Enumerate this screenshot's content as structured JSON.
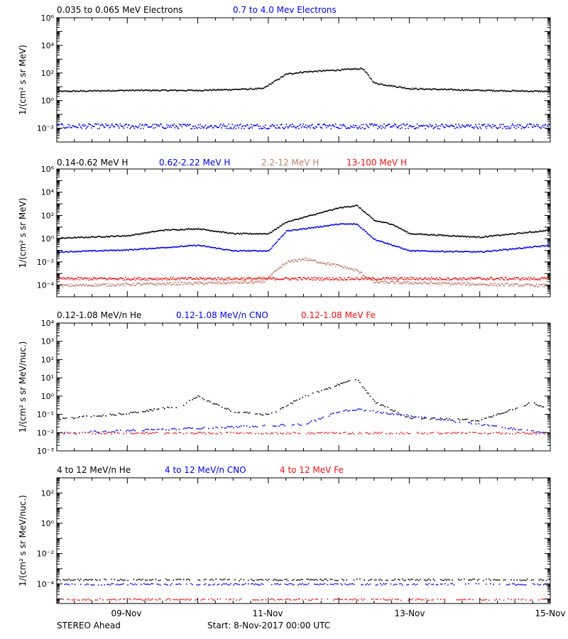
{
  "colors": {
    "black": "#000000",
    "blue": "#0000ee",
    "tan": "#c08070",
    "red": "#ee1111"
  },
  "x_ticks": [
    "09-Nov",
    "11-Nov",
    "13-Nov",
    "15-Nov"
  ],
  "footer": {
    "left": "STEREO Ahead",
    "start": "Start:  8-Nov-2017 00:00 UTC"
  },
  "chart_data": [
    {
      "type": "scatter",
      "title_parts": [
        "0.035 to 0.065 MeV Electrons",
        "0.7 to 4.0 Mev Electrons"
      ],
      "ylabel": "1/(cm² s sr MeV)",
      "yscale": "log",
      "ylim": [
        0.001,
        1000000
      ],
      "yticks": [
        "10⁶",
        "10⁴",
        "10²",
        "10⁰",
        "10⁻²"
      ],
      "xlim": [
        "2017-11-08",
        "2017-11-15"
      ],
      "series": [
        {
          "name": "0.035 to 0.065 MeV Electrons",
          "color": "black",
          "x": [
            "2017-11-08",
            "2017-11-09",
            "2017-11-10",
            "2017-11-10 12:00",
            "2017-11-10 22:00",
            "2017-11-11 06:00",
            "2017-11-11 12:00",
            "2017-11-12 00:00",
            "2017-11-12 08:00",
            "2017-11-12 12:00",
            "2017-11-13",
            "2017-11-14",
            "2017-11-15"
          ],
          "y": [
            5,
            6,
            6,
            7,
            8,
            90,
            130,
            180,
            230,
            20,
            8,
            6,
            5
          ]
        },
        {
          "name": "0.7 to 4.0 Mev Electrons",
          "color": "blue",
          "x": [
            "2017-11-08",
            "2017-11-10",
            "2017-11-12",
            "2017-11-15"
          ],
          "y": [
            0.015,
            0.015,
            0.015,
            0.015
          ]
        }
      ]
    },
    {
      "type": "scatter",
      "title_parts": [
        "0.14-0.62 MeV H",
        "0.62-2.22 MeV H",
        "2.2-12 MeV H",
        "13-100 MeV H"
      ],
      "ylabel": "1/(cm² s sr MeV)",
      "yscale": "log",
      "ylim": [
        1e-05,
        1000000
      ],
      "yticks": [
        "10⁶",
        "10⁴",
        "10²",
        "10⁰",
        "10⁻²",
        "10⁻⁴"
      ],
      "xlim": [
        "2017-11-08",
        "2017-11-15"
      ],
      "series": [
        {
          "name": "0.14-0.62 MeV H",
          "color": "black",
          "x": [
            "2017-11-08",
            "2017-11-09",
            "2017-11-09 12:00",
            "2017-11-10",
            "2017-11-10 12:00",
            "2017-11-11",
            "2017-11-11 06:00",
            "2017-11-12",
            "2017-11-12 06:00",
            "2017-11-12 12:00",
            "2017-11-12 18:00",
            "2017-11-13",
            "2017-11-14",
            "2017-11-15"
          ],
          "y": [
            1.2,
            2,
            6,
            8,
            3,
            3,
            30,
            500,
            800,
            40,
            20,
            3,
            1.5,
            6
          ]
        },
        {
          "name": "0.62-2.22 MeV H",
          "color": "blue",
          "x": [
            "2017-11-08",
            "2017-11-09",
            "2017-11-10",
            "2017-11-10 12:00",
            "2017-11-11",
            "2017-11-11 06:00",
            "2017-11-12",
            "2017-11-12 06:00",
            "2017-11-12 12:00",
            "2017-11-13",
            "2017-11-14",
            "2017-11-15"
          ],
          "y": [
            0.08,
            0.12,
            0.3,
            0.1,
            0.1,
            5,
            20,
            20,
            1,
            0.1,
            0.08,
            0.3
          ]
        },
        {
          "name": "2.2-12 MeV H",
          "color": "tan",
          "x": [
            "2017-11-08",
            "2017-11-10 22:00",
            "2017-11-11 06:00",
            "2017-11-11 12:00",
            "2017-11-12 00:00",
            "2017-11-12 06:00",
            "2017-11-12 12:00",
            "2017-11-15"
          ],
          "y": [
            0.0001,
            0.0002,
            0.01,
            0.02,
            0.005,
            0.002,
            0.0002,
            0.0001
          ]
        },
        {
          "name": "13-100 MeV H",
          "color": "red",
          "x": [
            "2017-11-08",
            "2017-11-15"
          ],
          "y": [
            0.0004,
            0.0004
          ]
        }
      ]
    },
    {
      "type": "scatter",
      "title_parts": [
        "0.12-1.08 MeV/n He",
        "0.12-1.08 MeV/n CNO",
        "0.12-1.08 MeV Fe"
      ],
      "ylabel": "1/(cm² s sr MeV/nuc.)",
      "yscale": "log",
      "ylim": [
        0.001,
        10000
      ],
      "yticks": [
        "10⁴",
        "10³",
        "10²",
        "10¹",
        "10⁰",
        "10⁻¹",
        "10⁻²",
        "10⁻³"
      ],
      "xlim": [
        "2017-11-08",
        "2017-11-15"
      ],
      "series": [
        {
          "name": "0.12-1.08 MeV/n He",
          "color": "black",
          "x": [
            "2017-11-08",
            "2017-11-09",
            "2017-11-09 18:00",
            "2017-11-10",
            "2017-11-10 12:00",
            "2017-11-11",
            "2017-11-11 12:00",
            "2017-11-12 06:00",
            "2017-11-12 12:00",
            "2017-11-13",
            "2017-11-14",
            "2017-11-14 18:00",
            "2017-11-15"
          ],
          "y": [
            0.06,
            0.12,
            0.3,
            1.0,
            0.15,
            0.1,
            1.0,
            10,
            0.5,
            0.07,
            0.05,
            0.5,
            0.15
          ]
        },
        {
          "name": "0.12-1.08 MeV/n CNO",
          "color": "blue",
          "x": [
            "2017-11-08",
            "2017-11-11 12:00",
            "2017-11-12",
            "2017-11-12 06:00",
            "2017-11-15"
          ],
          "y": [
            0.01,
            0.03,
            0.15,
            0.2,
            0.01
          ]
        },
        {
          "name": "0.12-1.08 MeV Fe",
          "color": "red",
          "x": [
            "2017-11-08",
            "2017-11-15"
          ],
          "y": [
            0.01,
            0.01
          ]
        }
      ]
    },
    {
      "type": "scatter",
      "title_parts": [
        "4 to 12 MeV/n He",
        "4 to 12 MeV/n CNO",
        "4 to 12 MeV Fe"
      ],
      "ylabel": "1/(cm² s sr MeV/nuc.)",
      "yscale": "log",
      "ylim": [
        5e-06,
        1000
      ],
      "yticks": [
        "10²",
        "10⁰",
        "10⁻²",
        "10⁻⁴"
      ],
      "xlim": [
        "2017-11-08",
        "2017-11-15"
      ],
      "series": [
        {
          "name": "4 to 12 MeV/n He",
          "color": "black",
          "x": [
            "2017-11-08",
            "2017-11-15"
          ],
          "y": [
            0.0002,
            0.0002
          ]
        },
        {
          "name": "4 to 12 MeV/n CNO",
          "color": "blue",
          "x": [
            "2017-11-08",
            "2017-11-15"
          ],
          "y": [
            0.0001,
            0.0001
          ]
        },
        {
          "name": "4 to 12 MeV Fe",
          "color": "red",
          "x": [
            "2017-11-08",
            "2017-11-15"
          ],
          "y": [
            1e-05,
            1e-05
          ]
        }
      ]
    }
  ]
}
